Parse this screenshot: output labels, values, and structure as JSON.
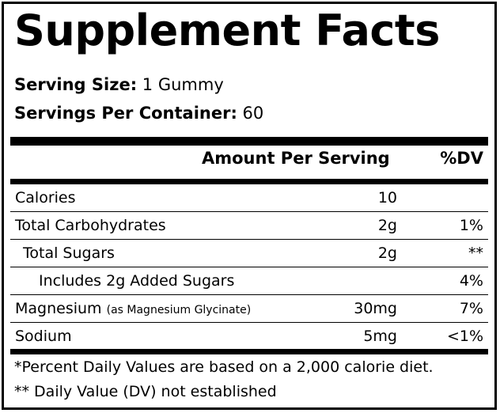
{
  "title": "Supplement Facts",
  "serving": {
    "size_label": "Serving Size:",
    "size_value": "1 Gummy",
    "per_container_label": "Servings Per Container:",
    "per_container_value": "60"
  },
  "header": {
    "amount_label": "Amount Per Serving",
    "dv_label": "%DV"
  },
  "rows": [
    {
      "name": "Calories",
      "note": "",
      "amount": "10",
      "dv": ""
    },
    {
      "name": "Total Carbohydrates",
      "note": "",
      "amount": "2g",
      "dv": "1%"
    },
    {
      "name": "Total Sugars",
      "note": "",
      "amount": "2g",
      "dv": "**"
    },
    {
      "name": "Includes 2g Added Sugars",
      "note": "",
      "amount": "",
      "dv": "4%"
    },
    {
      "name": "Magnesium",
      "note": "(as Magnesium Glycinate)",
      "amount": "30mg",
      "dv": "7%"
    },
    {
      "name": "Sodium",
      "note": "",
      "amount": "5mg",
      "dv": "<1%"
    }
  ],
  "footnotes": [
    "*Percent Daily Values are based on a 2,000 calorie diet.",
    "** Daily Value (DV) not established"
  ]
}
